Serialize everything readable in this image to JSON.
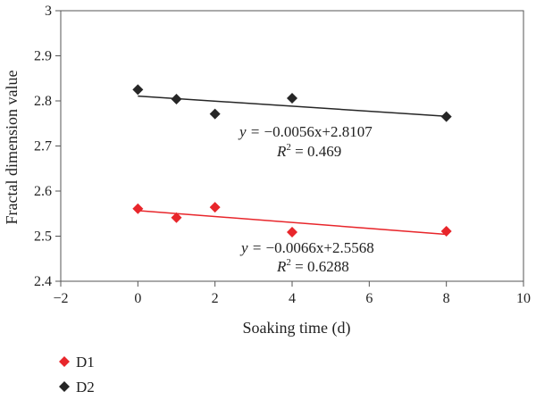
{
  "chart_data": {
    "type": "scatter",
    "xlabel": "Soaking time (d)",
    "ylabel": "Fractal dimension value",
    "xlim": [
      -2,
      10
    ],
    "ylim": [
      2.4,
      3.0
    ],
    "xticks": [
      -2,
      0,
      2,
      4,
      6,
      8,
      10
    ],
    "yticks": [
      2.4,
      2.5,
      2.6,
      2.7,
      2.8,
      2.9,
      3.0
    ],
    "xtick_labels": [
      "−2",
      "0",
      "2",
      "4",
      "6",
      "8",
      "10"
    ],
    "ytick_labels": [
      "2.4",
      "2.5",
      "2.6",
      "2.7",
      "2.8",
      "2.9",
      "3"
    ],
    "grid": false,
    "legend_position": "bottom-left",
    "series": [
      {
        "name": "D1",
        "color": "#e8262b",
        "marker": "diamond",
        "x": [
          0,
          1,
          2,
          4,
          8
        ],
        "y": [
          2.561,
          2.541,
          2.564,
          2.509,
          2.511
        ],
        "trendline": {
          "slope": -0.0066,
          "intercept": 2.5568,
          "equation_prefix": "y = ",
          "equation_body": "−0.0066x+2.5568",
          "r2_prefix": "R",
          "r2_sup": "2",
          "r2_value": " = 0.6288"
        }
      },
      {
        "name": "D2",
        "color": "#262626",
        "marker": "diamond",
        "x": [
          0,
          1,
          2,
          4,
          8
        ],
        "y": [
          2.825,
          2.804,
          2.771,
          2.806,
          2.765
        ],
        "trendline": {
          "slope": -0.0056,
          "intercept": 2.8107,
          "equation_prefix": "y = ",
          "equation_body": "−0.0056x+2.8107",
          "r2_prefix": "R",
          "r2_sup": "2",
          "r2_value": " = 0.469"
        }
      }
    ]
  }
}
